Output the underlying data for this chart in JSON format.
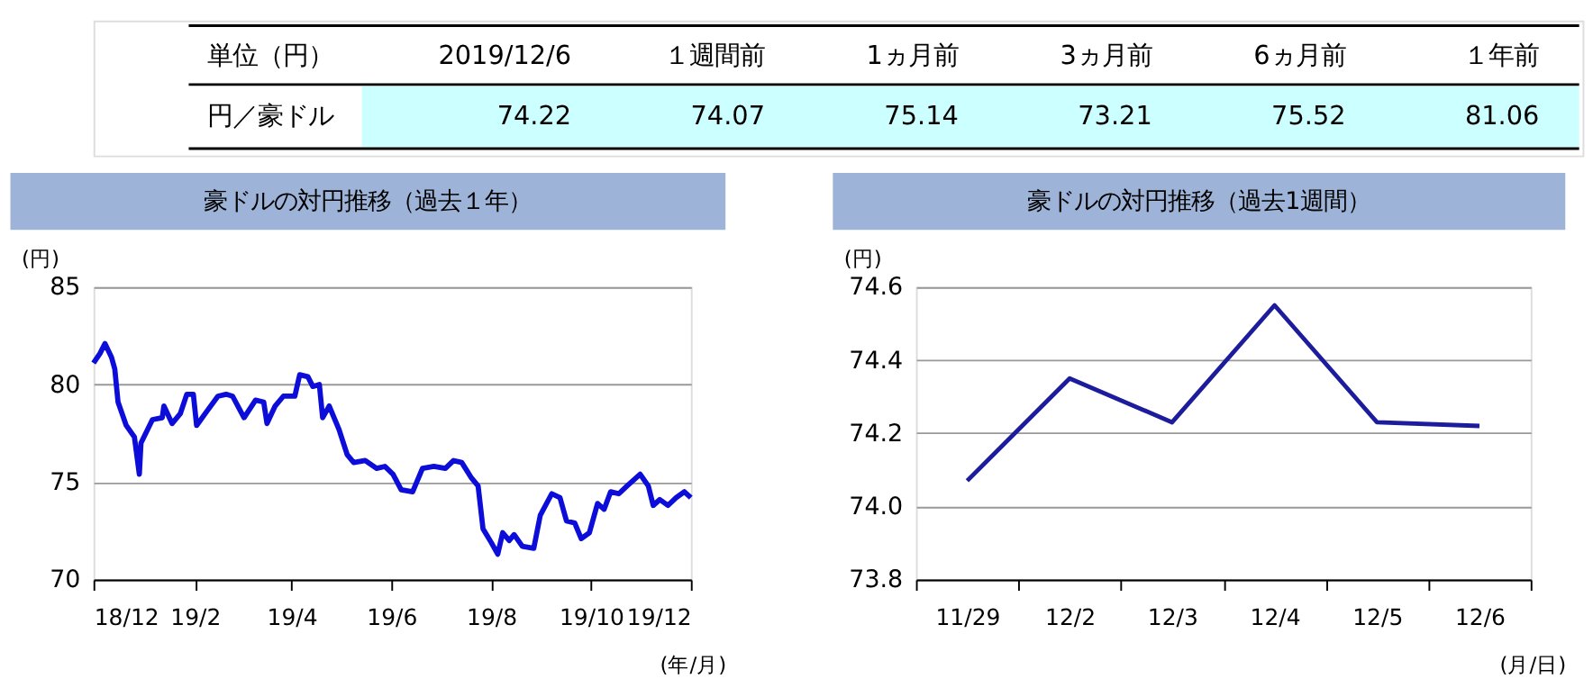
{
  "chart_data": [
    {
      "type": "other",
      "categories": [
        "2019/12/6",
        "１週間前",
        "1ヵ月前",
        "3ヵ月前",
        "6ヵ月前",
        "１年前"
      ],
      "values": [
        74.22,
        74.07,
        75.14,
        73.21,
        75.52,
        81.06
      ],
      "data_labels": true,
      "annotations": [
        "単位（円）",
        "円／豪ドル"
      ]
    },
    {
      "type": "line",
      "title": "豪ドルの対円推移（過去１年）",
      "ylabel": "(円)",
      "xlabel": "(年/月)",
      "grid": "y",
      "marker": "none",
      "line_style": "solid",
      "xlim": [
        "2018-12-06",
        "2019-12-06"
      ],
      "xticks": [
        {
          "value": "2018-12-06",
          "label": "18/12"
        },
        {
          "value": "2019-02-06",
          "label": "19/2"
        },
        {
          "value": "2019-04-06",
          "label": "19/4"
        },
        {
          "value": "2019-06-06",
          "label": "19/6"
        },
        {
          "value": "2019-08-06",
          "label": "19/8"
        },
        {
          "value": "2019-10-06",
          "label": "19/10"
        },
        {
          "value": "2019-12-06",
          "label": "19/12"
        }
      ],
      "ylim": [
        70,
        85
      ],
      "yticks": [
        70,
        75,
        80,
        85
      ],
      "x": [
        "2018-12-06",
        "2018-12-10",
        "2018-12-13",
        "2018-12-17",
        "2018-12-19",
        "2018-12-21",
        "2018-12-26",
        "2018-12-31",
        "2019-01-03",
        "2019-01-04",
        "2019-01-11",
        "2019-01-17",
        "2019-01-18",
        "2019-01-23",
        "2019-01-28",
        "2019-02-01",
        "2019-02-05",
        "2019-02-07",
        "2019-02-13",
        "2019-02-20",
        "2019-02-25",
        "2019-03-01",
        "2019-03-08",
        "2019-03-15",
        "2019-03-20",
        "2019-03-22",
        "2019-03-27",
        "2019-04-01",
        "2019-04-08",
        "2019-04-11",
        "2019-04-16",
        "2019-04-19",
        "2019-04-23",
        "2019-04-25",
        "2019-04-29",
        "2019-05-05",
        "2019-05-10",
        "2019-05-14",
        "2019-05-21",
        "2019-05-28",
        "2019-06-02",
        "2019-06-07",
        "2019-06-12",
        "2019-06-19",
        "2019-06-25",
        "2019-07-02",
        "2019-07-09",
        "2019-07-14",
        "2019-07-19",
        "2019-07-25",
        "2019-07-29",
        "2019-08-01",
        "2019-08-06",
        "2019-08-10",
        "2019-08-13",
        "2019-08-17",
        "2019-08-20",
        "2019-08-25",
        "2019-09-01",
        "2019-09-05",
        "2019-09-12",
        "2019-09-17",
        "2019-09-21",
        "2019-09-26",
        "2019-09-30",
        "2019-10-05",
        "2019-10-10",
        "2019-10-14",
        "2019-10-18",
        "2019-10-23",
        "2019-10-28",
        "2019-11-05",
        "2019-11-10",
        "2019-11-13",
        "2019-11-17",
        "2019-11-22",
        "2019-11-27",
        "2019-12-02",
        "2019-12-06"
      ],
      "series": [
        {
          "color": "#0d0dd9",
          "values": [
            81.1,
            81.6,
            82.1,
            81.4,
            80.8,
            79.1,
            77.9,
            77.3,
            75.4,
            77.0,
            78.2,
            78.3,
            78.9,
            78.0,
            78.5,
            79.5,
            79.5,
            77.9,
            78.6,
            79.4,
            79.5,
            79.4,
            78.3,
            79.2,
            79.1,
            78.0,
            78.9,
            79.4,
            79.4,
            80.5,
            80.4,
            79.9,
            80.0,
            78.3,
            78.9,
            77.7,
            76.4,
            76.0,
            76.1,
            75.7,
            75.8,
            75.4,
            74.6,
            74.5,
            75.7,
            75.8,
            75.7,
            76.1,
            76.0,
            75.2,
            74.8,
            72.6,
            71.9,
            71.3,
            72.4,
            72.0,
            72.3,
            71.7,
            71.6,
            73.3,
            74.4,
            74.2,
            73.0,
            72.9,
            72.1,
            72.4,
            73.9,
            73.6,
            74.5,
            74.4,
            74.8,
            75.4,
            74.8,
            73.8,
            74.1,
            73.8,
            74.2,
            74.5,
            74.2
          ]
        }
      ]
    },
    {
      "type": "line",
      "title": "豪ドルの対円推移（過去1週間）",
      "ylabel": "(円)",
      "xlabel": "(月/日)",
      "grid": "y",
      "marker": "none",
      "line_style": "solid",
      "categories": [
        "11/29",
        "12/2",
        "12/3",
        "12/4",
        "12/5",
        "12/6"
      ],
      "ylim": [
        73.8,
        74.6
      ],
      "yticks": [
        73.8,
        {
          "value": 74.0,
          "label": "74.0"
        },
        74.2,
        74.4,
        74.6
      ],
      "series": [
        {
          "color": "#1c1c9c",
          "values": [
            74.07,
            74.35,
            74.23,
            74.55,
            74.23,
            74.22
          ]
        }
      ]
    }
  ]
}
